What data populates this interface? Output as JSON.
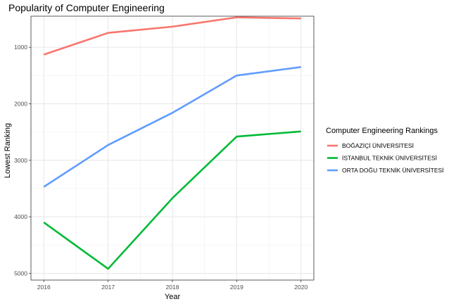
{
  "chart_data": {
    "type": "line",
    "title": "Popularity of Computer Engineering",
    "xlabel": "Year",
    "ylabel": "Lowest Ranking",
    "x": [
      2016,
      2017,
      2018,
      2019,
      2020
    ],
    "x_tick_labels": [
      "2016",
      "2017",
      "2018",
      "2019",
      "2020"
    ],
    "y_reversed": true,
    "ylim": [
      450,
      5120
    ],
    "y_ticks": [
      1000,
      2000,
      3000,
      4000,
      5000
    ],
    "y_tick_labels": [
      "1000",
      "2000",
      "3000",
      "4000",
      "5000"
    ],
    "grid": true,
    "legend_title": "Computer Engineering Rankings",
    "legend_position": "right",
    "series": [
      {
        "name": "BOĞAZİÇİ ÜNİVERSİTESİ",
        "color": "#F8766D",
        "values": [
          1130,
          745,
          635,
          470,
          490
        ]
      },
      {
        "name": "İSTANBUL TEKNİK ÜNİVERSİTESİ",
        "color": "#00BA38",
        "values": [
          4100,
          4920,
          3670,
          2580,
          2490
        ]
      },
      {
        "name": "ORTA DOĞU TEKNİK ÜNİVERSİTESİ",
        "color": "#619CFF",
        "values": [
          3470,
          2730,
          2160,
          1500,
          1350
        ]
      }
    ]
  }
}
